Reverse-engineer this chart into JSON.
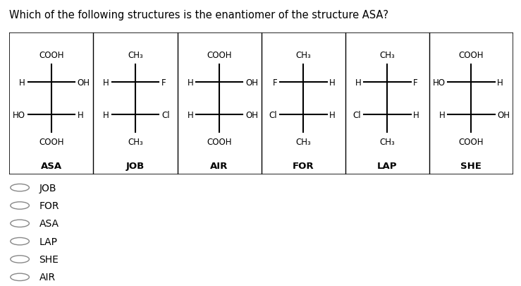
{
  "title": "Which of the following structures is the enantiomer of the structure ASA?",
  "title_fontsize": 10.5,
  "background_color": "#ffffff",
  "molecules": [
    {
      "name": "ASA",
      "top": "COOH",
      "left1": "H",
      "right1": "OH",
      "left2": "HO",
      "right2": "H",
      "bottom": "COOH",
      "col": 0
    },
    {
      "name": "JOB",
      "top": "CH₃",
      "left1": "H",
      "right1": "F",
      "left2": "H",
      "right2": "Cl",
      "bottom": "CH₃",
      "col": 1
    },
    {
      "name": "AIR",
      "top": "COOH",
      "left1": "H",
      "right1": "OH",
      "left2": "H",
      "right2": "OH",
      "bottom": "COOH",
      "col": 2
    },
    {
      "name": "FOR",
      "top": "CH₃",
      "left1": "F",
      "right1": "H",
      "left2": "Cl",
      "right2": "H",
      "bottom": "CH₃",
      "col": 3
    },
    {
      "name": "LAP",
      "top": "CH₃",
      "left1": "H",
      "right1": "F",
      "left2": "Cl",
      "right2": "H",
      "bottom": "CH₃",
      "col": 4
    },
    {
      "name": "SHE",
      "top": "COOH",
      "left1": "HO",
      "right1": "H",
      "left2": "H",
      "right2": "OH",
      "bottom": "COOH",
      "col": 5
    }
  ],
  "choices": [
    "JOB",
    "FOR",
    "ASA",
    "LAP",
    "SHE",
    "AIR"
  ],
  "n_cols": 6,
  "figsize": [
    7.39,
    4.06
  ],
  "dpi": 100
}
